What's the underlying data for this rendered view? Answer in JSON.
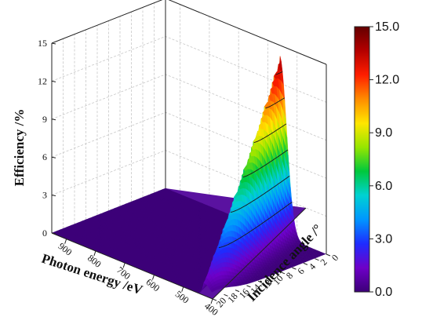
{
  "chart_data": {
    "type": "surface",
    "title": "",
    "xlabel": "Photon energy /eV",
    "ylabel": "Incidence angle /°",
    "zlabel": "Efficiency /%",
    "x_ticks": [
      "900",
      "800",
      "700",
      "600",
      "500",
      "400"
    ],
    "y_ticks": [
      "20",
      "18",
      "16",
      "14",
      "12",
      "10",
      "8",
      "6",
      "4",
      "2",
      "0"
    ],
    "z_ticks": [
      "0",
      "3",
      "6",
      "9",
      "12",
      "15"
    ],
    "xlim": [
      400,
      950
    ],
    "ylim": [
      0,
      20
    ],
    "zlim": [
      0,
      15
    ],
    "peak": {
      "photon_energy_eV": 560,
      "incidence_angle_deg": 0,
      "efficiency_pct": 14.2
    },
    "peak_at_max_angle": {
      "photon_energy_eV": 430,
      "incidence_angle_deg": 20,
      "efficiency_pct": 1.0
    },
    "grid": true,
    "colormap": [
      "#3c0078",
      "#6e00c8",
      "#1e2cff",
      "#0096ff",
      "#00d2d2",
      "#00c83c",
      "#96e600",
      "#ffe600",
      "#ff8c00",
      "#ff1e00",
      "#b40000",
      "#640000"
    ],
    "colorbar": {
      "range": [
        0,
        15
      ],
      "tick_labels": [
        "15.0",
        "12.0",
        "9.0",
        "6.0",
        "3.0",
        "0.0"
      ]
    }
  }
}
